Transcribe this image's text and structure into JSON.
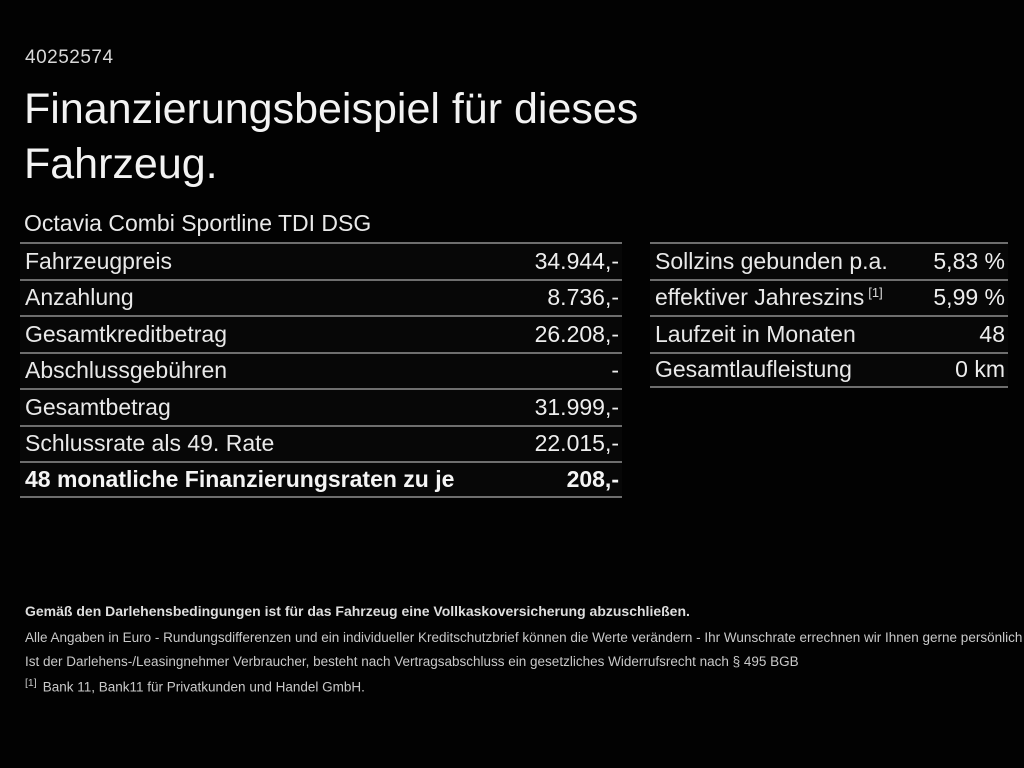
{
  "page": {
    "background_color": "#000000",
    "id_number": "40252574",
    "title_line1": "Finanzierungsbeispiel für dieses",
    "title_line2": "Fahrzeug.",
    "vehicle_name": "Octavia Combi Sportline TDI DSG"
  },
  "financing_table": {
    "rows": [
      {
        "label": "Fahrzeugpreis",
        "value": "34.944,-"
      },
      {
        "label": "Anzahlung",
        "value": "8.736,-"
      },
      {
        "label": "Gesamtkreditbetrag",
        "value": "26.208,-"
      },
      {
        "label": "Abschlussgebühren",
        "value": "-"
      },
      {
        "label": "Gesamtbetrag",
        "value": "31.999,-"
      },
      {
        "label": "Schlussrate als 49. Rate",
        "value": "22.015,-"
      },
      {
        "label": "48 monatliche Finanzierungsraten zu je",
        "value": "208,-"
      }
    ]
  },
  "conditions_table": {
    "rows": [
      {
        "label": "Sollzins gebunden p.a.",
        "value": "5,83 %"
      },
      {
        "label": "effektiver Jahreszins",
        "footnote_ref": "[1]",
        "value": "5,99 %"
      },
      {
        "label": "Laufzeit in Monaten",
        "value": "48"
      },
      {
        "label": "Gesamtlaufleistung",
        "value": "0 km"
      }
    ]
  },
  "footer": {
    "insurance_note": "Gemäß den Darlehensbedingungen ist für das Fahrzeug eine Vollkaskoversicherung abzuschließen.",
    "disclaimer_line1": "Alle Angaben in Euro - Rundungsdifferenzen und ein individueller Kreditschutzbrief können die Werte verändern - Ihr Wunschrate errechnen wir Ihnen gerne persönlich",
    "disclaimer_line2": "Ist der Darlehens-/Leasingnehmer Verbraucher, besteht nach Vertragsabschluss ein gesetzliches Widerrufsrecht nach § 495 BGB",
    "footnote_marker": "[1]",
    "footnote_text": "Bank 11, Bank11 für Privatkunden und Handel GmbH."
  }
}
